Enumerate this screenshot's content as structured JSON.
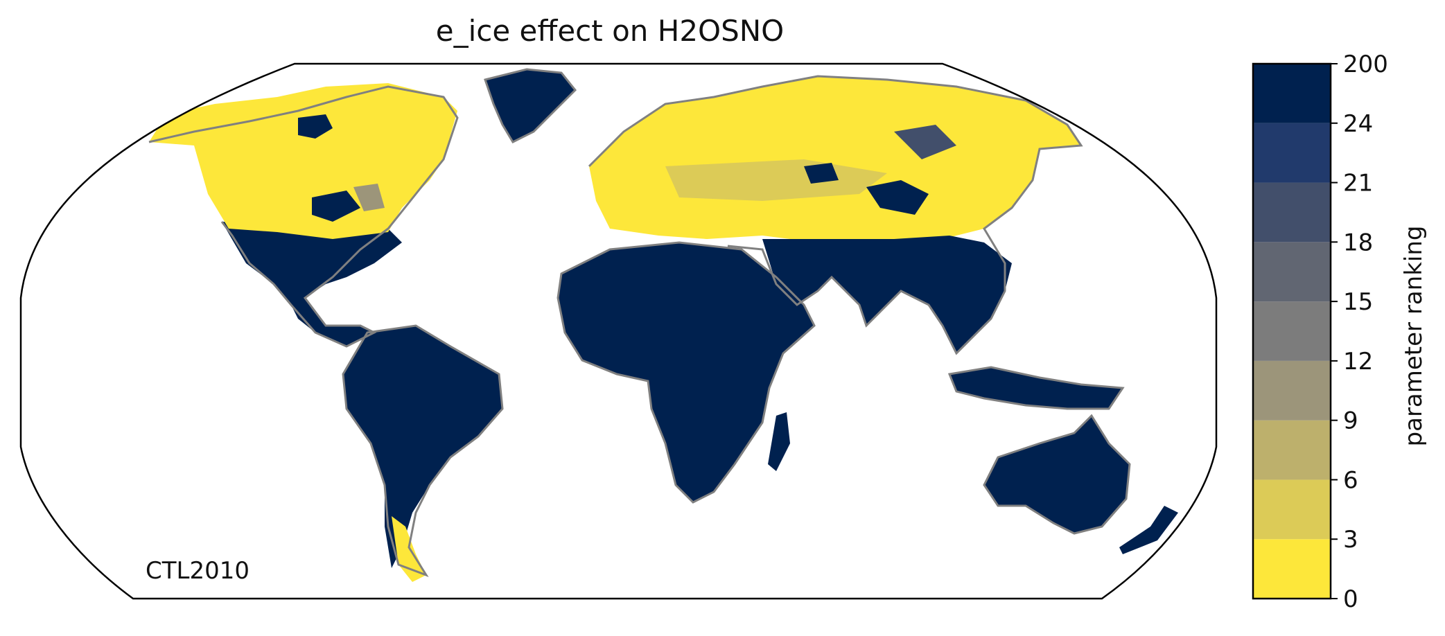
{
  "title": "e_ice effect on H2OSNO",
  "panel_label": "CTL2010",
  "colorbar": {
    "label": "parameter ranking",
    "ticks": [
      "0",
      "3",
      "6",
      "9",
      "12",
      "15",
      "18",
      "21",
      "24",
      "200"
    ],
    "colors": [
      "#fde73a",
      "#dccb57",
      "#bdb06c",
      "#9c957a",
      "#7c7c7c",
      "#616672",
      "#424f6b",
      "#213a6c",
      "#00214f"
    ]
  },
  "map": {
    "projection": "Robinson",
    "coastline_color": "#808080",
    "region_colors": {
      "tropics_and_south": "#00214f",
      "northern_high_latitudes": "#fde73a"
    }
  }
}
